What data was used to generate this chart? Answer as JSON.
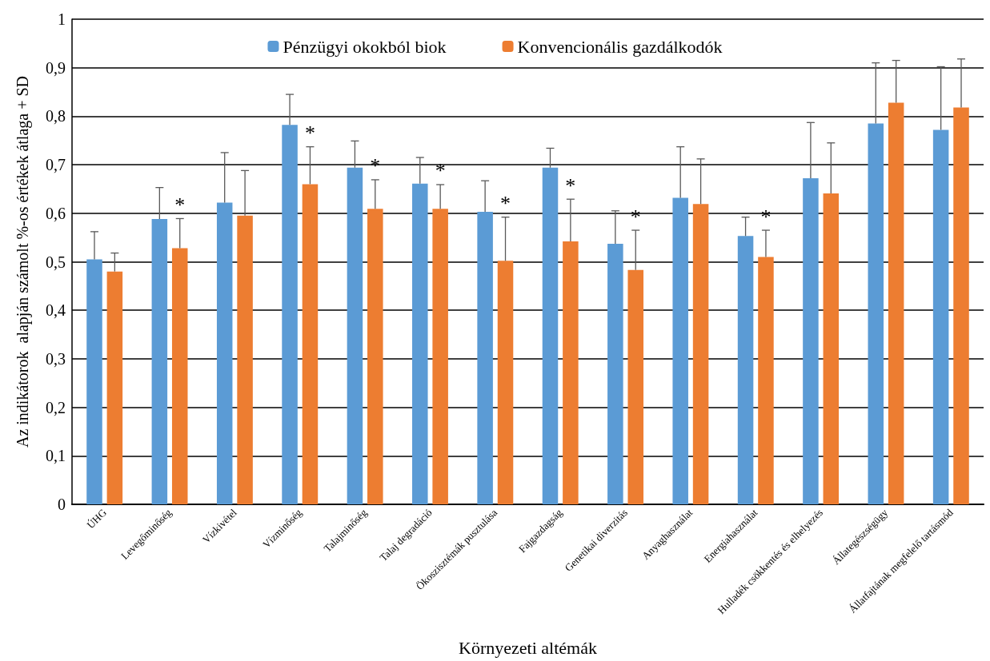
{
  "chart_data": {
    "type": "bar",
    "xlabel": "Környezeti altémák",
    "ylabel": "Az indikátorok  alapján számolt %-os értékek átlaga + SD",
    "categories": [
      "ÚHG",
      "Levegőminőség",
      "Vízkivétel",
      "Vízminőség",
      "Talajminőség",
      "Talaj degradáció",
      "Ökoszisztémák pusztulása",
      "Fajgazdagság",
      "Genetikai diverzitás",
      "Anyaghasználat",
      "Energiahasználat",
      "Hulladék csökkentés és elhelyezés",
      "Állategészségügy",
      "Állatfajtának megfelelő tartásmód"
    ],
    "series": [
      {
        "name": "Pénzügyi okokból biok",
        "color": "#5b9bd5",
        "values": [
          0.505,
          0.588,
          0.622,
          0.782,
          0.694,
          0.661,
          0.603,
          0.694,
          0.537,
          0.632,
          0.553,
          0.672,
          0.785,
          0.772
        ],
        "errors": [
          [
            0.505,
            0.562
          ],
          [
            0.588,
            0.653
          ],
          [
            0.622,
            0.725
          ],
          [
            0.782,
            0.845
          ],
          [
            0.694,
            0.749
          ],
          [
            0.661,
            0.715
          ],
          [
            0.603,
            0.667
          ],
          [
            0.694,
            0.734
          ],
          [
            0.537,
            0.605
          ],
          [
            0.632,
            0.737
          ],
          [
            0.553,
            0.592
          ],
          [
            0.672,
            0.787
          ],
          [
            0.785,
            0.91
          ],
          [
            0.772,
            0.902
          ]
        ]
      },
      {
        "name": "Konvencionális gazdálkodók",
        "color": "#ed7d31",
        "values": [
          0.48,
          0.528,
          0.595,
          0.66,
          0.609,
          0.609,
          0.502,
          0.542,
          0.483,
          0.619,
          0.51,
          0.641,
          0.828,
          0.818
        ],
        "errors": [
          [
            0.48,
            0.518
          ],
          [
            0.528,
            0.589
          ],
          [
            0.595,
            0.688
          ],
          [
            0.66,
            0.737
          ],
          [
            0.609,
            0.669
          ],
          [
            0.609,
            0.659
          ],
          [
            0.502,
            0.592
          ],
          [
            0.542,
            0.629
          ],
          [
            0.483,
            0.565
          ],
          [
            0.619,
            0.712
          ],
          [
            0.51,
            0.565
          ],
          [
            0.641,
            0.745
          ],
          [
            0.828,
            0.915
          ],
          [
            0.818,
            0.918
          ]
        ],
        "value_labels": [
          null,
          "*",
          null,
          "*",
          "*",
          "*",
          "*",
          "*",
          "*",
          null,
          "*",
          null,
          null,
          null
        ]
      }
    ],
    "ylim": [
      0,
      1
    ],
    "yticks": [
      0,
      {
        "value": 0.1,
        "label": "0,1"
      },
      {
        "value": 0.2,
        "label": "0,2"
      },
      {
        "value": 0.3,
        "label": "0,3"
      },
      {
        "value": 0.4,
        "label": "0,4"
      },
      {
        "value": 0.5,
        "label": "0,5"
      },
      {
        "value": 0.6,
        "label": "0,6"
      },
      {
        "value": 0.7,
        "label": "0,7"
      },
      {
        "value": 0.8,
        "label": "0,8"
      },
      {
        "value": 0.9,
        "label": "0,9"
      },
      1
    ],
    "grid": "y",
    "legend": "top"
  }
}
